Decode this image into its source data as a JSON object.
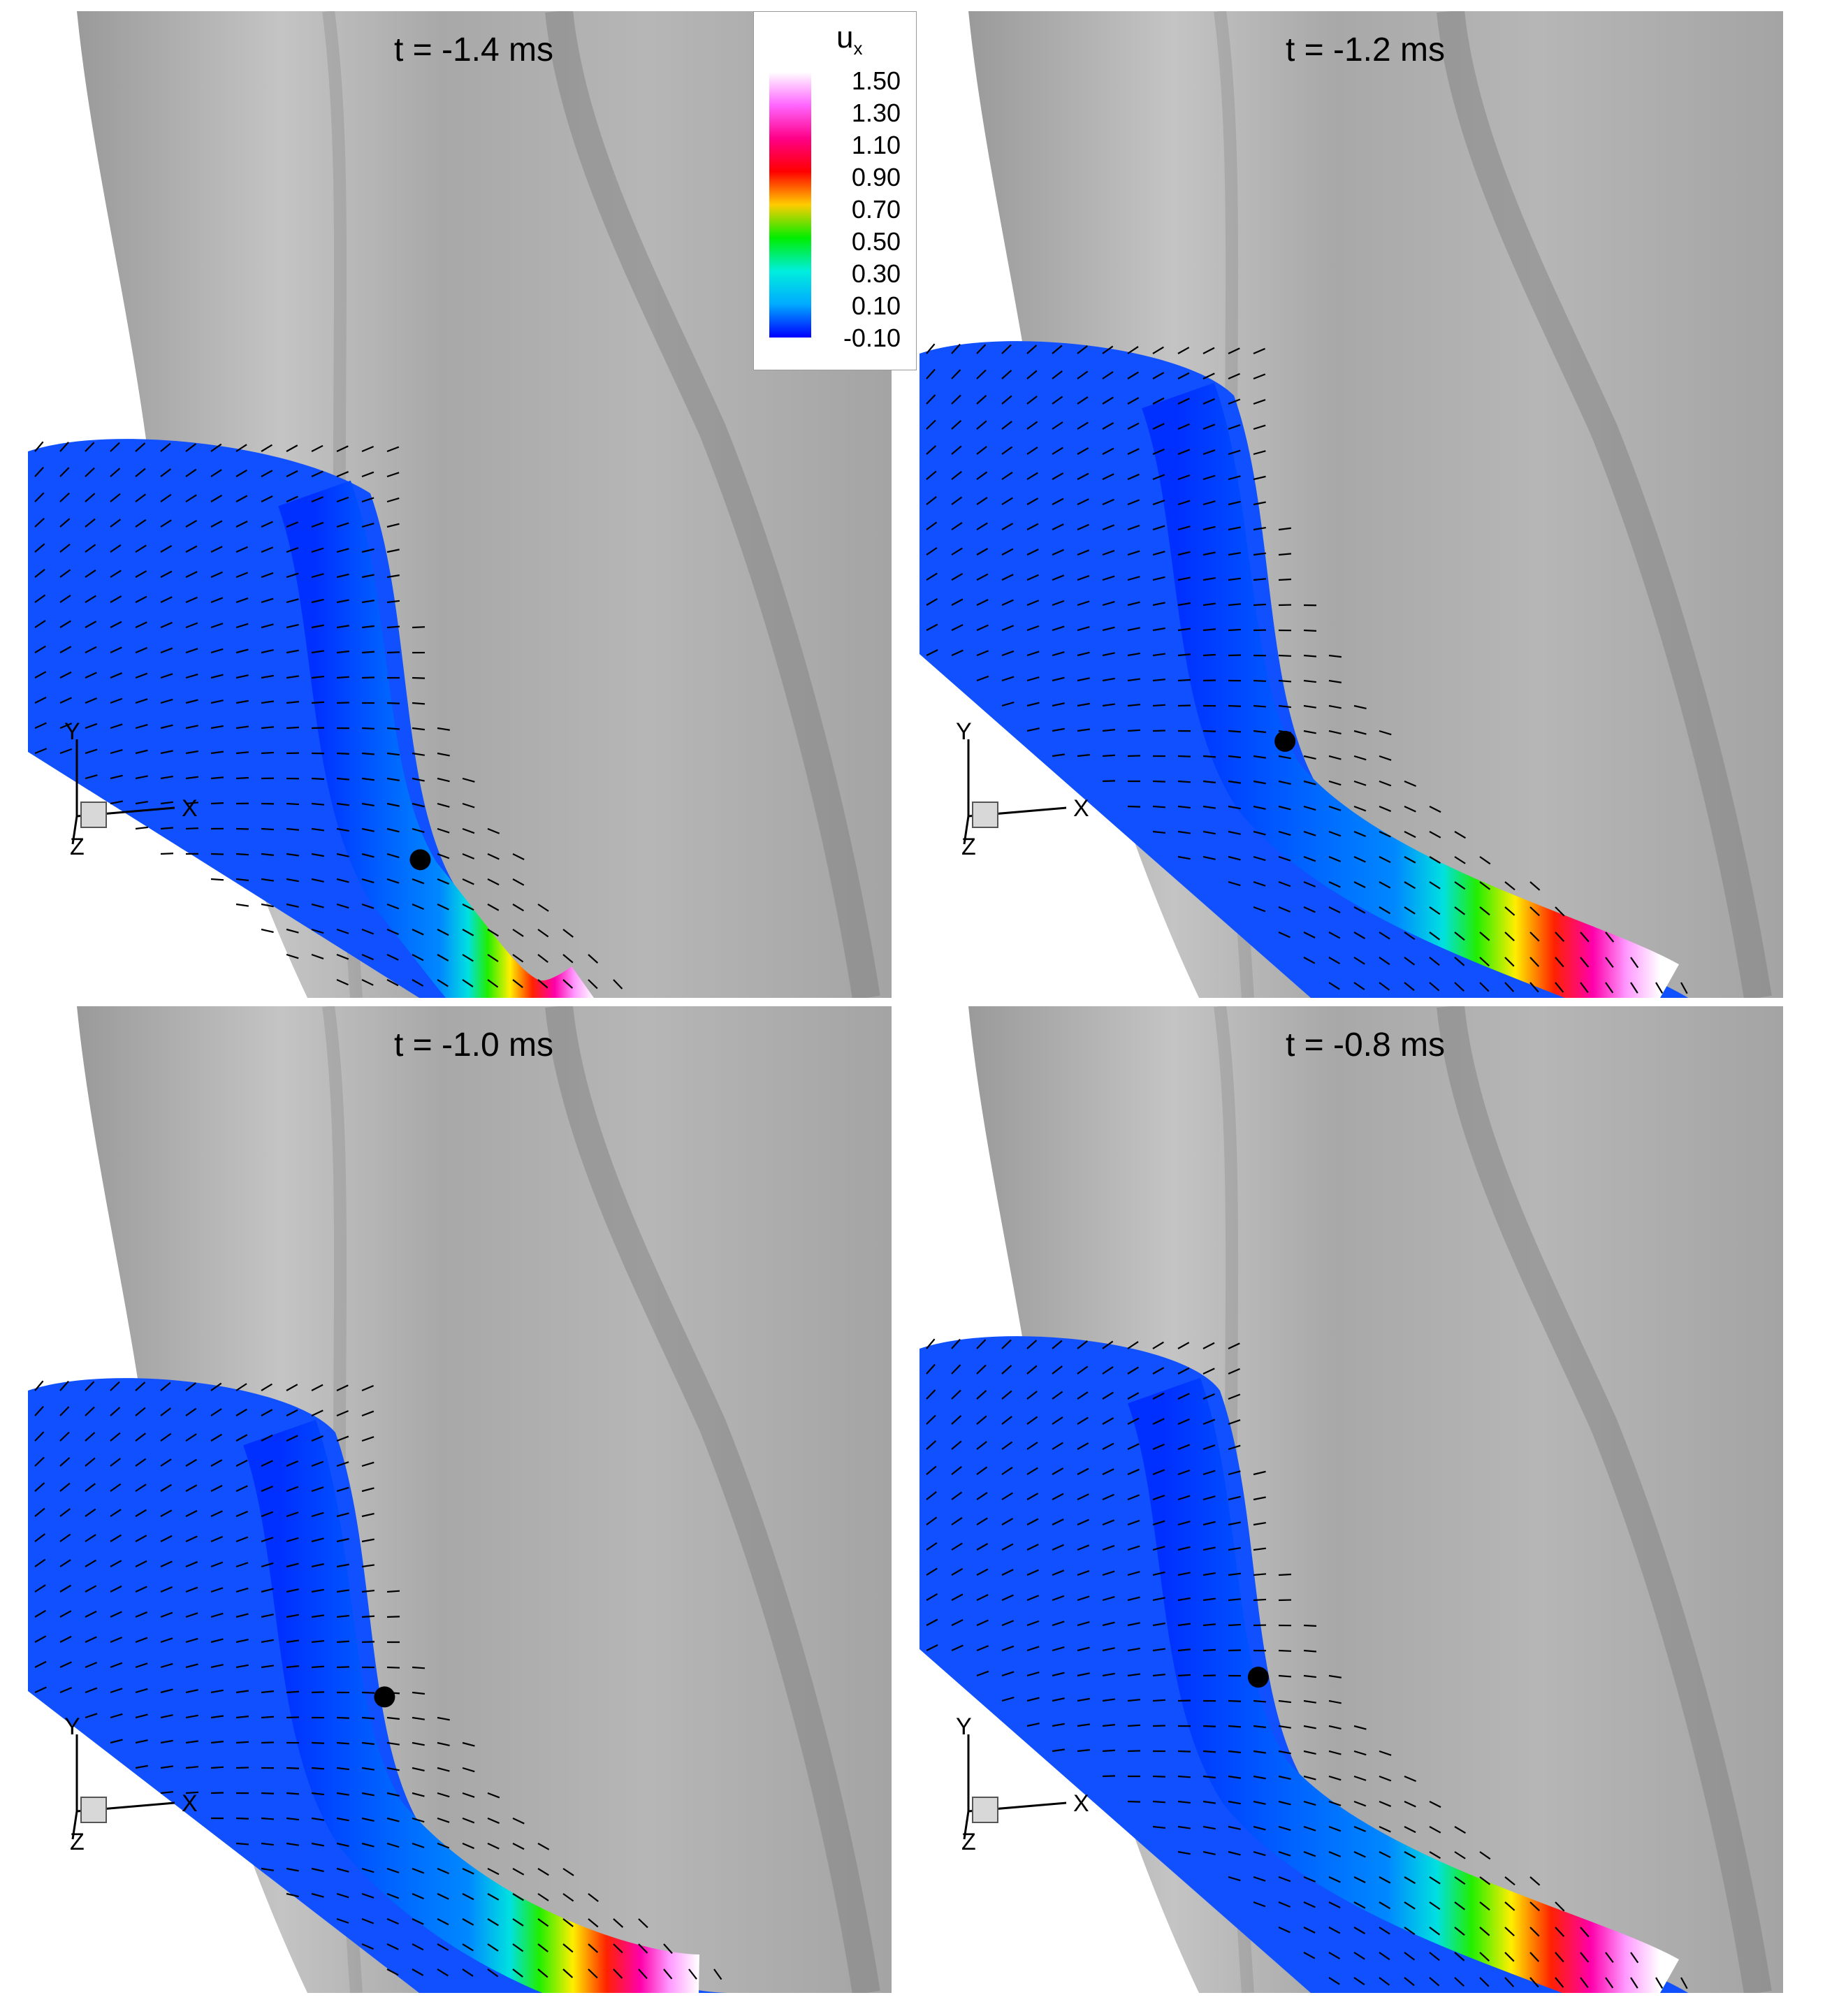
{
  "panels": [
    {
      "title": "t = -1.4 ms",
      "marker": [
        0.44,
        0.86
      ]
    },
    {
      "title": "t = -1.2 ms",
      "marker": [
        0.41,
        0.74
      ]
    },
    {
      "title": "t = -1.0 ms",
      "marker": [
        0.4,
        0.7
      ]
    },
    {
      "title": "t = -0.8 ms",
      "marker": [
        0.38,
        0.68
      ]
    }
  ],
  "legend": {
    "variable": "u",
    "subscript": "x",
    "levels": [
      "1.50",
      "1.30",
      "1.10",
      "0.90",
      "0.70",
      "0.50",
      "0.30",
      "0.10",
      "-0.10"
    ],
    "colors": [
      "#ffffff",
      "#ff66ff",
      "#ff0088",
      "#ff0000",
      "#ffcc00",
      "#00ee00",
      "#00eedd",
      "#00aaff",
      "#0000ff"
    ]
  },
  "axes": {
    "y": "Y",
    "x": "X",
    "z": "Z"
  }
}
